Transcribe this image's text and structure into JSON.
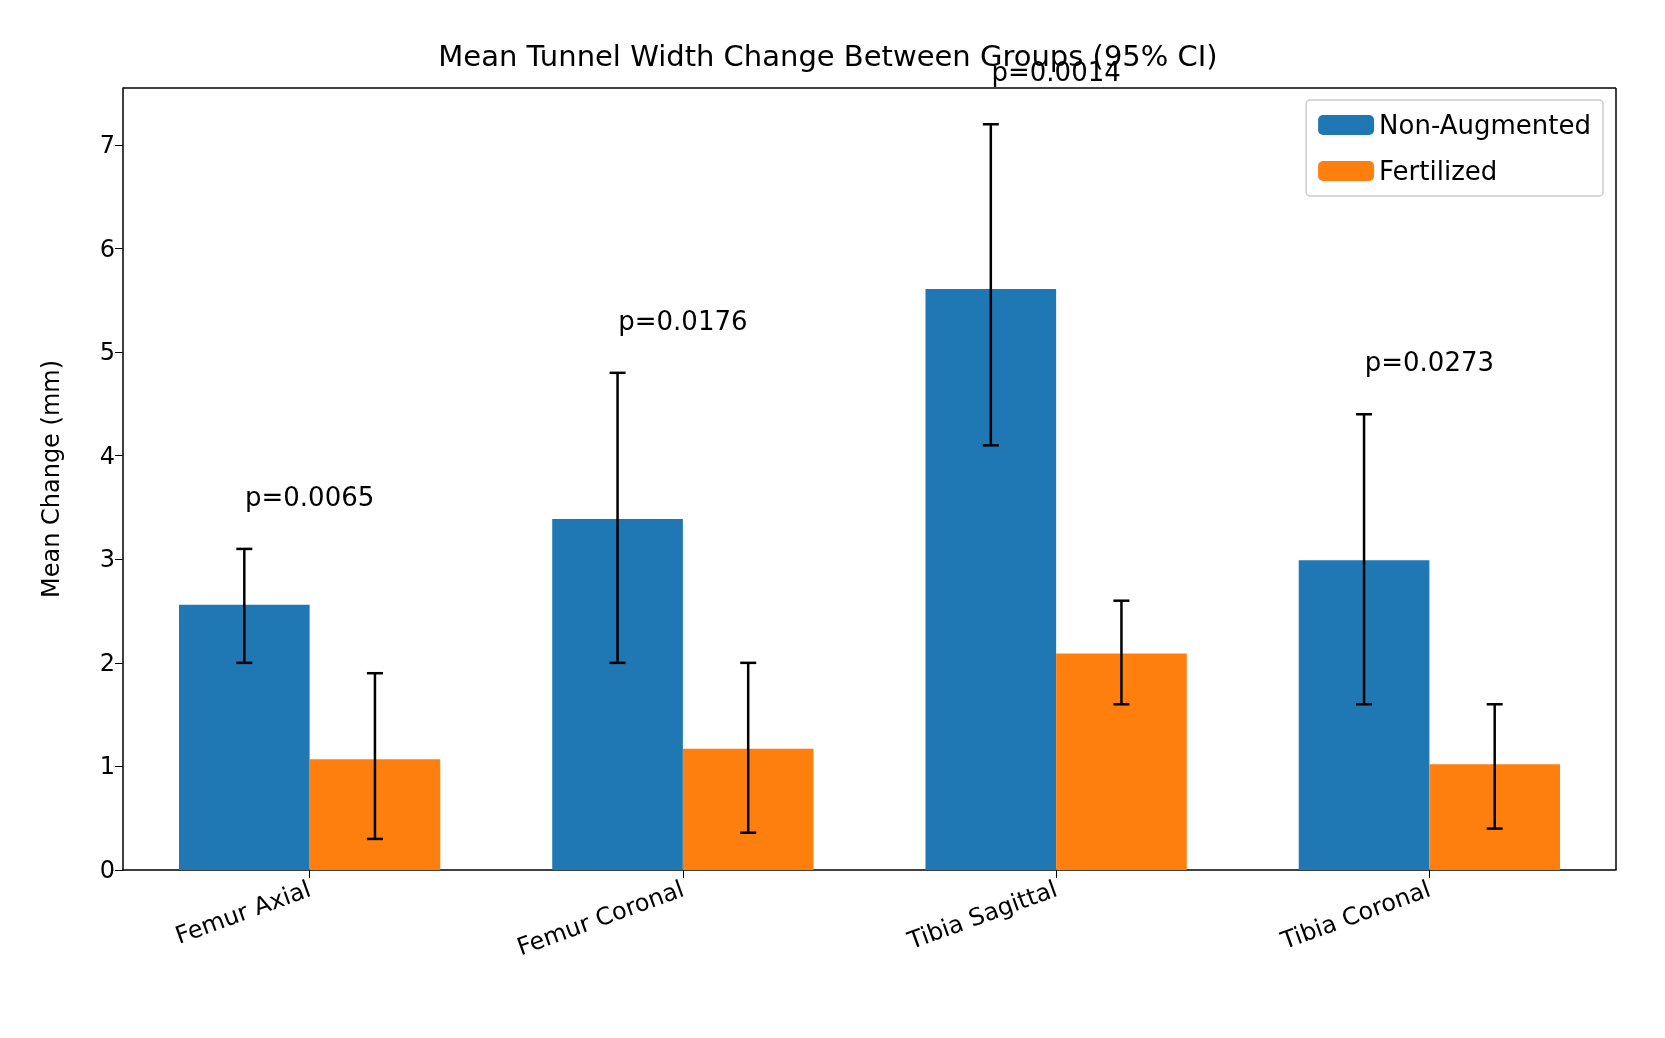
{
  "chart_data": {
    "type": "bar",
    "title": "Mean Tunnel Width Change Between Groups (95% CI)",
    "ylabel": "Mean Change (mm)",
    "categories": [
      "Femur Axial",
      "Femur Coronal",
      "Tibia Sagittal",
      "Tibia Coronal"
    ],
    "series": [
      {
        "name": "Non-Augmented",
        "color": "#1f77b4",
        "values": [
          2.56,
          3.39,
          5.61,
          2.99
        ],
        "errors": [
          [
            2.0,
            3.1
          ],
          [
            2.0,
            4.8
          ],
          [
            4.1,
            7.2
          ],
          [
            1.6,
            4.4
          ]
        ]
      },
      {
        "name": "Fertilized",
        "color": "#ff7f0e",
        "values": [
          1.07,
          1.17,
          2.09,
          1.02
        ],
        "errors": [
          [
            0.3,
            1.9
          ],
          [
            0.36,
            2.0
          ],
          [
            1.6,
            2.6
          ],
          [
            0.4,
            1.6
          ]
        ]
      }
    ],
    "annotations": [
      "p=0.0065",
      "p=0.0176",
      "p=0.0014",
      "p=0.0273"
    ],
    "ylim": [
      0,
      7.55
    ],
    "yticks": [
      0,
      1,
      2,
      3,
      4,
      5,
      6,
      7
    ],
    "grid": false,
    "legend": "top right"
  }
}
